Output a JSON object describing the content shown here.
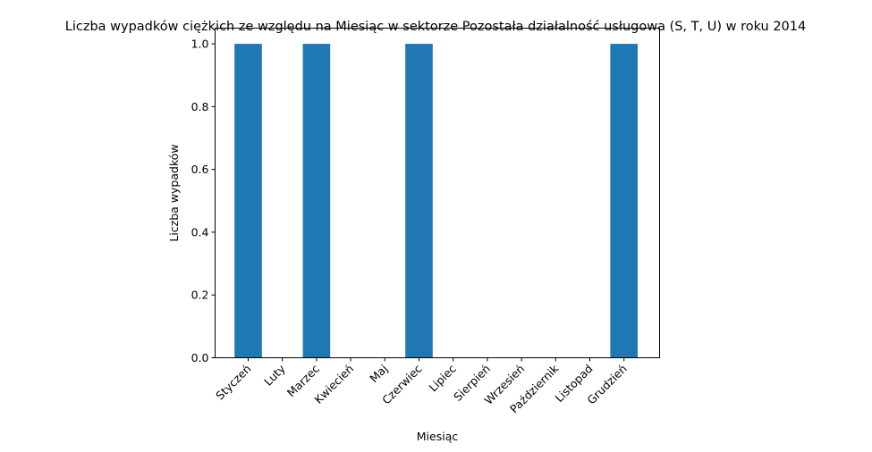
{
  "chart_data": {
    "type": "bar",
    "title": "Liczba wypadków ciężkich ze względu na Miesiąc w sektorze Pozostała działalność usługowa (S, T, U) w roku 2014",
    "xlabel": "Miesiąc",
    "ylabel": "Liczba wypadków",
    "categories": [
      "Styczeń",
      "Luty",
      "Marzec",
      "Kwiecień",
      "Maj",
      "Czerwiec",
      "Lipiec",
      "Sierpień",
      "Wrzesień",
      "Październik",
      "Listopad",
      "Grudzień"
    ],
    "values": [
      1,
      0,
      1,
      0,
      0,
      1,
      0,
      0,
      0,
      0,
      0,
      1
    ],
    "ylim": [
      0,
      1.05
    ],
    "yticks": [
      0.0,
      0.2,
      0.4,
      0.6,
      0.8,
      1.0
    ],
    "ytick_labels": [
      "0.0",
      "0.2",
      "0.4",
      "0.6",
      "0.8",
      "1.0"
    ],
    "grid": false,
    "bar_color": "#1f77b4"
  }
}
